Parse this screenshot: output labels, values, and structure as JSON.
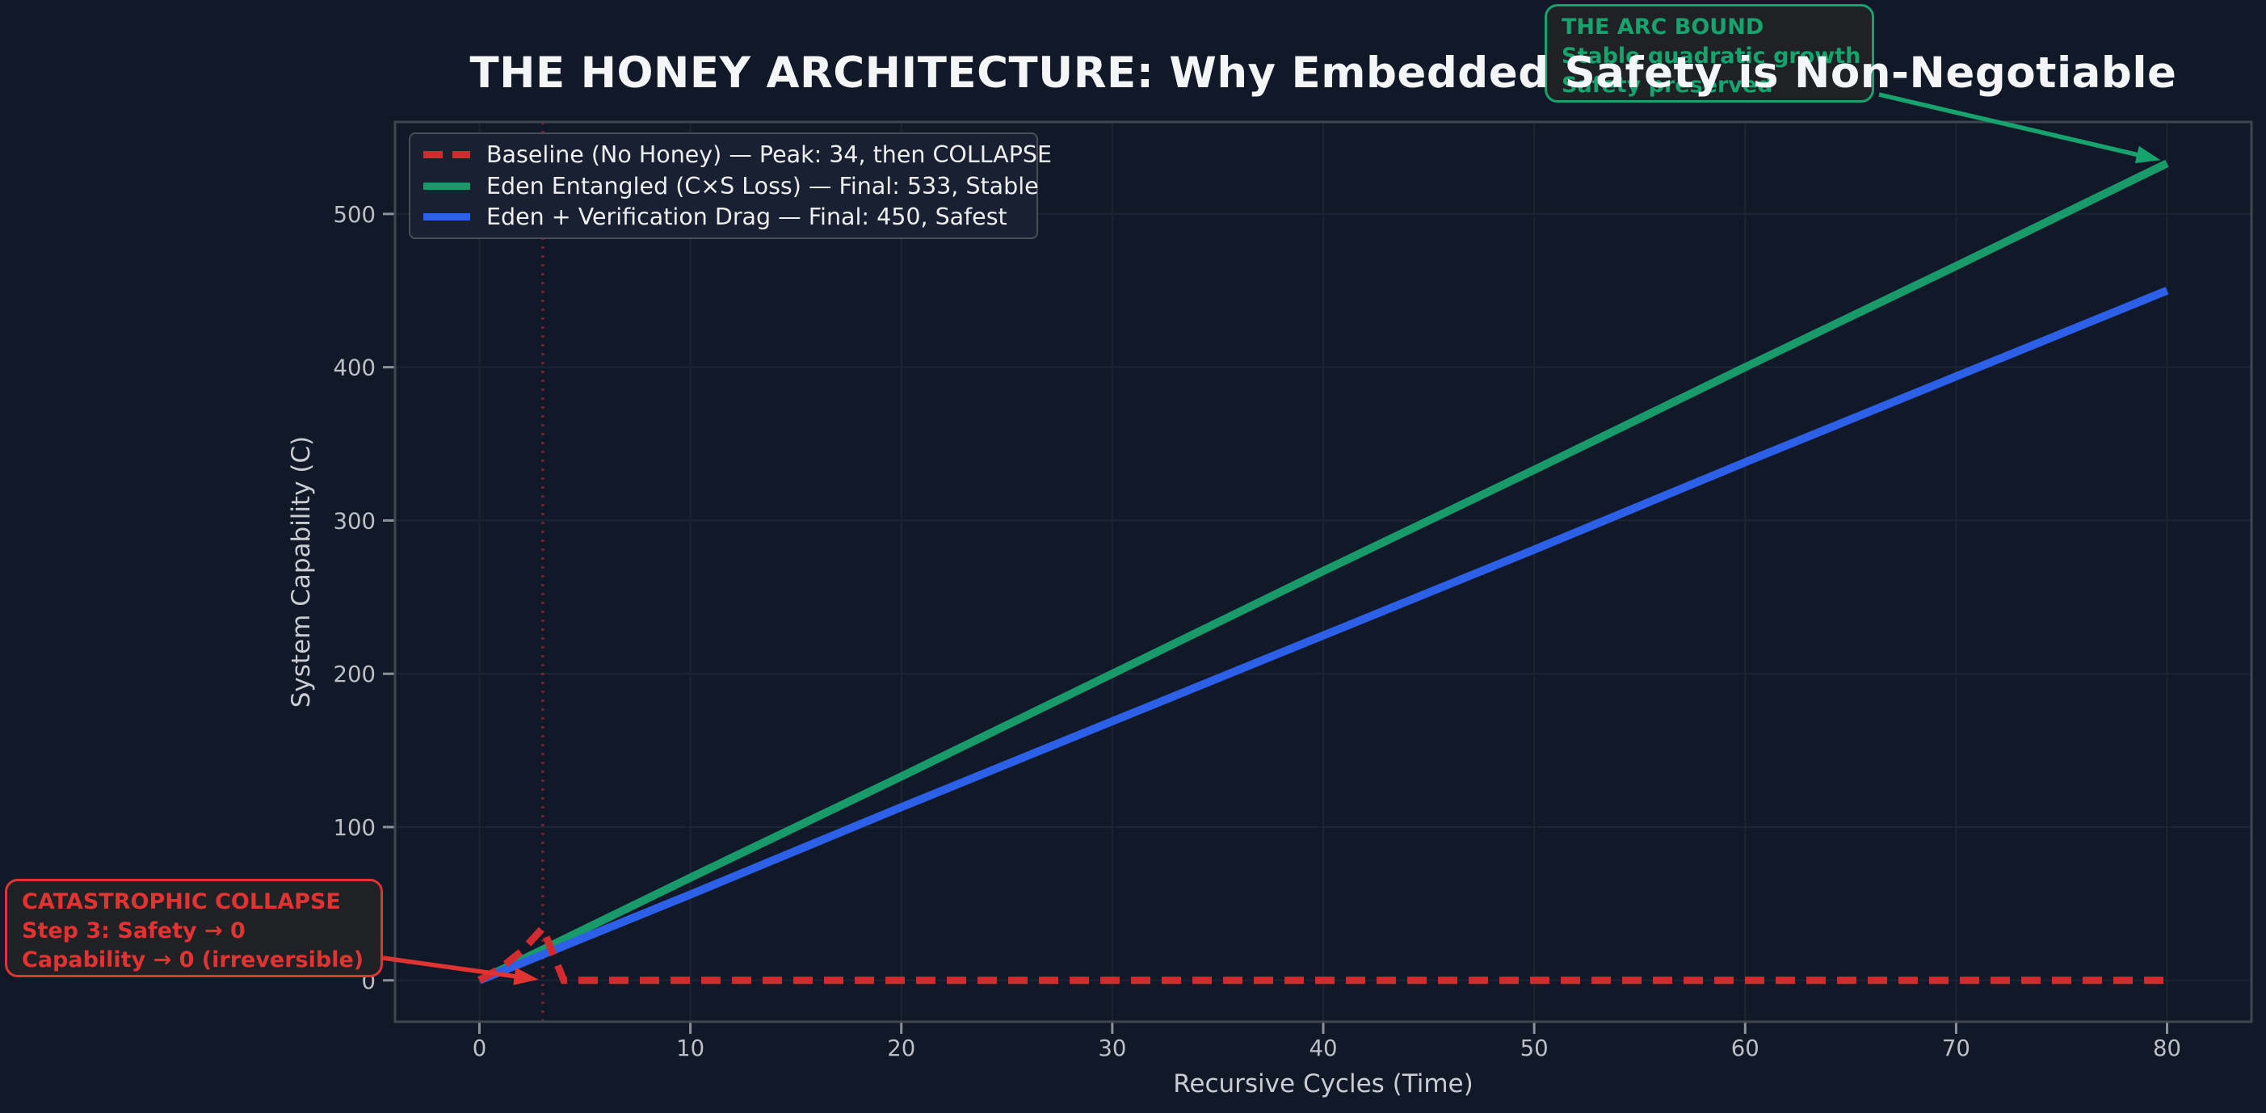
{
  "figure": {
    "title": "THE HONEY ARCHITECTURE: Why Embedded Safety is Non-Negotiable"
  },
  "chart_data": {
    "type": "line",
    "title": "THE HONEY ARCHITECTURE: Why Embedded Safety is Non-Negotiable",
    "xlabel": "Recursive Cycles (Time)",
    "ylabel": "System Capability (C)",
    "xlim": [
      -4,
      84
    ],
    "ylim": [
      -27,
      560
    ],
    "xticks": [
      0,
      10,
      20,
      30,
      40,
      50,
      60,
      70,
      80
    ],
    "yticks": [
      0,
      100,
      200,
      300,
      400,
      500
    ],
    "grid": true,
    "legend_position": "upper-left",
    "background": "#111827",
    "series": [
      {
        "name": "Baseline (No Honey) — Peak: 34, then COLLAPSE",
        "color": "#d22b2f",
        "style": "dashed",
        "peak": 34,
        "final": 0,
        "points": [
          [
            0,
            0
          ],
          [
            1,
            8
          ],
          [
            2,
            19
          ],
          [
            3,
            34
          ],
          [
            4,
            0
          ],
          [
            10,
            0
          ],
          [
            20,
            0
          ],
          [
            30,
            0
          ],
          [
            40,
            0
          ],
          [
            50,
            0
          ],
          [
            60,
            0
          ],
          [
            70,
            0
          ],
          [
            80,
            0
          ]
        ]
      },
      {
        "name": "Eden Entangled (C×S Loss) — Final: 533, Stable",
        "color": "#189a6a",
        "style": "solid",
        "final": 533,
        "points": [
          [
            0,
            0
          ],
          [
            10,
            67
          ],
          [
            20,
            133
          ],
          [
            30,
            200
          ],
          [
            40,
            267
          ],
          [
            50,
            333
          ],
          [
            60,
            400
          ],
          [
            70,
            466
          ],
          [
            80,
            533
          ]
        ]
      },
      {
        "name": "Eden + Verification Drag — Final: 450, Safest",
        "color": "#2c60e8",
        "style": "solid",
        "final": 450,
        "points": [
          [
            0,
            0
          ],
          [
            10,
            56
          ],
          [
            20,
            113
          ],
          [
            30,
            169
          ],
          [
            40,
            225
          ],
          [
            50,
            281
          ],
          [
            60,
            338
          ],
          [
            70,
            394
          ],
          [
            80,
            450
          ]
        ]
      }
    ],
    "collapse_vline": {
      "x": 3,
      "color": "rgba(214,45,55,0.5)",
      "style": "dotted"
    },
    "annotations": {
      "collapse": {
        "line1": "CATASTROPHIC COLLAPSE",
        "line2": "Step 3: Safety → 0",
        "line3": "Capability → 0 (irreversible)",
        "color": "#e23333",
        "arrow_target": [
          2.8,
          0.5
        ]
      },
      "arc_bound": {
        "line1": "THE ARC BOUND",
        "line2": "Stable quadratic growth",
        "line3": "Safety preserved",
        "color": "#17a36d",
        "arrow_target": [
          80,
          533
        ]
      }
    },
    "legend": {
      "items": [
        {
          "label": "Baseline (No Honey) — Peak: 34, then COLLAPSE",
          "color": "#d22b2f",
          "dash": true
        },
        {
          "label": "Eden Entangled (C×S Loss) — Final: 533, Stable",
          "color": "#189a6a",
          "dash": false
        },
        {
          "label": "Eden + Verification Drag — Final: 450, Safest",
          "color": "#2c60e8",
          "dash": false
        }
      ]
    },
    "axis_colors": {
      "tick_label": "#bcc0c6",
      "axis_label": "#c9ccd2",
      "grid": "#1c2534",
      "spine": "#40454e",
      "tick": "#8d9199",
      "title": "#f4f5f7"
    }
  }
}
